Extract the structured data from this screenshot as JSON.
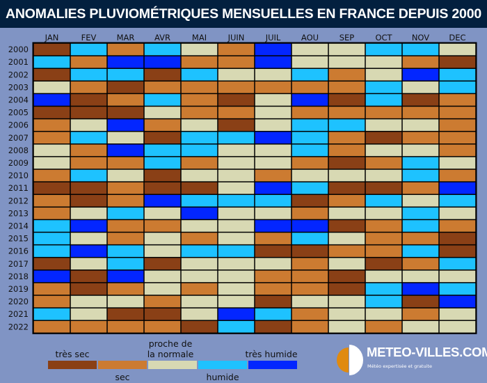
{
  "chart_data": {
    "type": "heatmap",
    "title": "ANOMALIES PLUVIOMÉTRIQUES MENSUELLES EN FRANCE DEPUIS 2000",
    "x_categories": [
      "JAN",
      "FEV",
      "MAR",
      "AVR",
      "MAI",
      "JUIN",
      "JUIL",
      "AOU",
      "SEP",
      "OCT",
      "NOV",
      "DEC"
    ],
    "y_categories": [
      "2000",
      "2001",
      "2002",
      "2003",
      "2004",
      "2005",
      "2006",
      "2007",
      "2008",
      "2009",
      "2010",
      "2011",
      "2012",
      "2013",
      "2014",
      "2015",
      "2016",
      "2017",
      "2018",
      "2019",
      "2020",
      "2021",
      "2022"
    ],
    "scale": [
      {
        "level": 1,
        "label": "très sec",
        "color": "#8a4016"
      },
      {
        "level": 2,
        "label": "sec",
        "color": "#cc7b31"
      },
      {
        "level": 3,
        "label": "proche de la normale",
        "color": "#d8d9b3"
      },
      {
        "level": 4,
        "label": "humide",
        "color": "#1ec2ff"
      },
      {
        "level": 5,
        "label": "très humide",
        "color": "#0326ff"
      }
    ],
    "values": [
      [
        1,
        4,
        2,
        4,
        3,
        2,
        5,
        3,
        3,
        4,
        4,
        3
      ],
      [
        4,
        2,
        5,
        5,
        2,
        2,
        5,
        3,
        3,
        3,
        2,
        1
      ],
      [
        1,
        4,
        4,
        1,
        4,
        3,
        3,
        4,
        2,
        3,
        5,
        4
      ],
      [
        3,
        2,
        1,
        2,
        2,
        2,
        2,
        2,
        2,
        4,
        3,
        4
      ],
      [
        5,
        1,
        2,
        4,
        2,
        1,
        3,
        5,
        1,
        4,
        1,
        2
      ],
      [
        1,
        1,
        1,
        3,
        2,
        2,
        3,
        2,
        2,
        2,
        2,
        2
      ],
      [
        2,
        3,
        5,
        2,
        3,
        1,
        3,
        4,
        4,
        3,
        3,
        2
      ],
      [
        2,
        4,
        3,
        1,
        4,
        4,
        5,
        4,
        2,
        1,
        2,
        2
      ],
      [
        3,
        2,
        5,
        4,
        4,
        3,
        3,
        4,
        2,
        3,
        3,
        2
      ],
      [
        3,
        2,
        2,
        4,
        2,
        3,
        3,
        2,
        1,
        2,
        4,
        3
      ],
      [
        2,
        4,
        3,
        1,
        3,
        3,
        2,
        3,
        3,
        3,
        4,
        2
      ],
      [
        1,
        1,
        2,
        1,
        1,
        3,
        5,
        4,
        1,
        1,
        2,
        5
      ],
      [
        2,
        1,
        2,
        5,
        4,
        4,
        4,
        1,
        2,
        4,
        3,
        4
      ],
      [
        2,
        3,
        4,
        3,
        5,
        3,
        3,
        2,
        3,
        3,
        4,
        3
      ],
      [
        4,
        5,
        2,
        2,
        3,
        3,
        5,
        5,
        1,
        2,
        4,
        2
      ],
      [
        4,
        3,
        2,
        3,
        2,
        3,
        2,
        4,
        3,
        2,
        2,
        1
      ],
      [
        4,
        5,
        4,
        3,
        4,
        4,
        1,
        1,
        2,
        2,
        4,
        1
      ],
      [
        1,
        3,
        4,
        1,
        3,
        3,
        3,
        2,
        3,
        1,
        2,
        4
      ],
      [
        5,
        1,
        5,
        3,
        3,
        3,
        2,
        2,
        1,
        3,
        3,
        3
      ],
      [
        2,
        1,
        2,
        3,
        2,
        3,
        2,
        2,
        1,
        4,
        5,
        4
      ],
      [
        2,
        3,
        3,
        2,
        3,
        3,
        1,
        3,
        3,
        4,
        1,
        5
      ],
      [
        4,
        3,
        1,
        1,
        3,
        5,
        4,
        2,
        3,
        3,
        2,
        3
      ],
      [
        2,
        2,
        2,
        2,
        1,
        4,
        1,
        2,
        3,
        2,
        3,
        3
      ]
    ],
    "legend_placement": "bottom"
  },
  "legend": {
    "tres_sec": "très sec",
    "sec": "sec",
    "normale_line1": "proche de",
    "normale_line2": "la normale",
    "humide": "humide",
    "tres_humide": "très humide"
  },
  "logo": {
    "name": "METEO-VILLES.COM",
    "tagline": "Météo expertisée et gratuite",
    "colors": {
      "orange": "#e08a10",
      "white": "#ffffff"
    }
  },
  "colors": {
    "background": "#8094c4",
    "title_bar": "#03203f"
  }
}
